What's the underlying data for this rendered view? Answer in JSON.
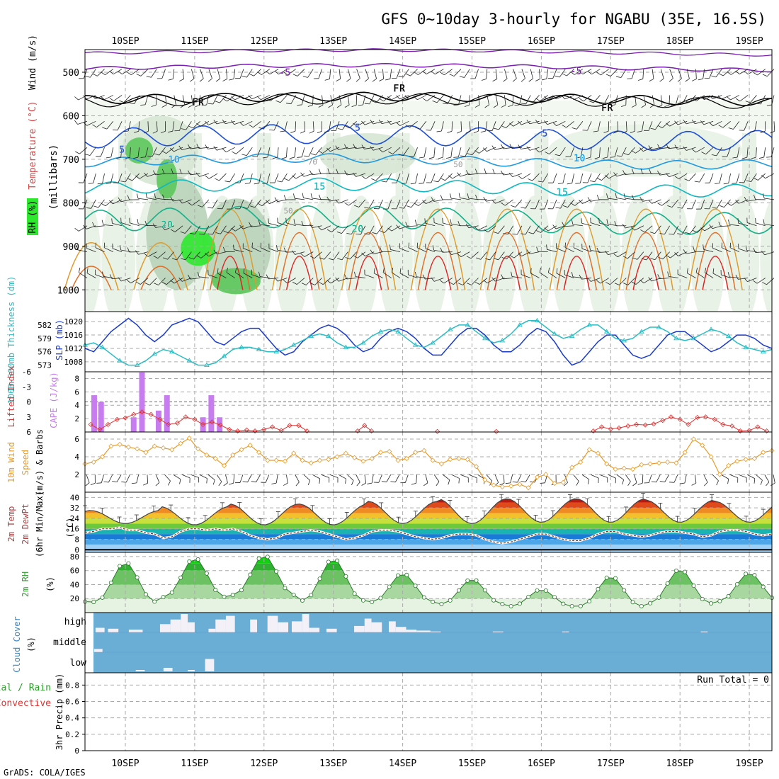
{
  "header": {
    "title": "GFS 0~10day 3-hourly for NGABU (35E, 16.5S)",
    "footer": "GrADS: COLA/IGES"
  },
  "dates": [
    "10SEP",
    "11SEP",
    "12SEP",
    "13SEP",
    "14SEP",
    "15SEP",
    "16SEP",
    "17SEP",
    "18SEP",
    "19SEP"
  ],
  "colors": {
    "grid": "#aaaaaa",
    "frame": "#000000",
    "thickness": "#2bbcc4",
    "slp": "#1a3acc",
    "cape": "#c77cf0",
    "lifted": "#dd3333",
    "wind10": "#e89b2a",
    "temp": "#444444",
    "rh": "#2e9e2e",
    "cloud": "#6aaed6",
    "cloud_gap": "#f4f0f8",
    "barb": "#222222",
    "t5": "#7a1fb0",
    "tfr": "#000000",
    "t_pos5": "#1f4fd8",
    "t10": "#1f9ae0",
    "t15": "#10b8c0",
    "t20": "#14b08a",
    "t25": "#e09a2a",
    "t30": "#e06d2a",
    "t35": "#dd2222",
    "rh_fill": "#2a9a2a"
  },
  "chart_data": [
    {
      "id": "profile",
      "type": "heatmap",
      "ylabel_parts": [
        "Wind (m/s)",
        "Temperature (°C)",
        "RH (%)",
        "(millibars)"
      ],
      "ylabel_wind": "Wind (m/s)",
      "ylabel_temp": "Temperature (°C)",
      "ylabel_rh": "RH (%)",
      "ylabel_mb": "(millibars)",
      "yticks": [
        "500",
        "600",
        "700",
        "800",
        "900",
        "1000"
      ],
      "ylim": [
        450,
        1000
      ],
      "isotherm_labels": [
        {
          "text": "-5",
          "day": 2.3,
          "p": 500,
          "kind": "t5"
        },
        {
          "text": "-5",
          "day": 6.5,
          "p": 497,
          "kind": "t5"
        },
        {
          "text": "FR",
          "day": 1.05,
          "p": 568,
          "kind": "tfr"
        },
        {
          "text": "FR",
          "day": 3.95,
          "p": 537,
          "kind": "tfr"
        },
        {
          "text": "FR",
          "day": 6.95,
          "p": 581,
          "kind": "tfr"
        },
        {
          "text": "5",
          "day": -0.05,
          "p": 677,
          "kind": "t_pos5"
        },
        {
          "text": "5",
          "day": 3.35,
          "p": 627,
          "kind": "t_pos5"
        },
        {
          "text": "5",
          "day": 6.05,
          "p": 640,
          "kind": "t_pos5"
        },
        {
          "text": "10",
          "day": 0.7,
          "p": 700,
          "kind": "t10"
        },
        {
          "text": "10",
          "day": 6.55,
          "p": 697,
          "kind": "t10"
        },
        {
          "text": "15",
          "day": 2.8,
          "p": 762,
          "kind": "t15"
        },
        {
          "text": "15",
          "day": 6.3,
          "p": 775,
          "kind": "t15"
        },
        {
          "text": "20",
          "day": 0.6,
          "p": 850,
          "kind": "t20"
        },
        {
          "text": "20",
          "day": 3.35,
          "p": 860,
          "kind": "t20"
        }
      ],
      "rh_labels": [
        {
          "text": "50",
          "day": 2.35,
          "p": 825
        },
        {
          "text": "70",
          "day": 2.7,
          "p": 712
        },
        {
          "text": "50",
          "day": 4.8,
          "p": 718
        }
      ],
      "rh_blobs": [
        {
          "day": 1.05,
          "p": 905,
          "rd": 0.25,
          "rp": 40,
          "rh": 90
        },
        {
          "day": 0.6,
          "p": 745,
          "rd": 0.15,
          "rp": 45,
          "rh": 80
        },
        {
          "day": 0.2,
          "p": 680,
          "rd": 0.2,
          "rp": 30,
          "rh": 80
        },
        {
          "day": 1.6,
          "p": 980,
          "rd": 0.35,
          "rp": 30,
          "rh": 80
        },
        {
          "day": 0.75,
          "p": 870,
          "rd": 0.45,
          "rp": 130,
          "rh": 60
        },
        {
          "day": 1.6,
          "p": 900,
          "rd": 0.5,
          "rp": 110,
          "rh": 60
        },
        {
          "day": 0.5,
          "p": 680,
          "rd": 0.55,
          "rp": 80,
          "rh": 40
        },
        {
          "day": 3.5,
          "p": 690,
          "rd": 0.7,
          "rp": 50,
          "rh": 40
        },
        {
          "day": 7.5,
          "p": 680,
          "rd": 1.4,
          "rp": 60,
          "rh": 30
        }
      ]
    },
    {
      "id": "slp_thick",
      "type": "line",
      "ylabel_thick": "1000-500mb Thickness (dm)",
      "ylabel_slp": "SLP (mb)",
      "yticks_left": [
        "582",
        "579",
        "576",
        "573"
      ],
      "yticks_right": [
        "1020",
        "1016",
        "1012",
        "1008"
      ],
      "ylim_left": [
        571.5,
        585
      ],
      "ylim_right": [
        1005,
        1023
      ],
      "series": [
        {
          "name": "SLP",
          "axis": "right",
          "values": [
            1012,
            1011,
            1014,
            1017,
            1019,
            1021,
            1019,
            1016,
            1014,
            1016,
            1019,
            1020,
            1021,
            1020,
            1017,
            1014,
            1013,
            1015,
            1017,
            1018,
            1018,
            1015,
            1012,
            1010,
            1011,
            1014,
            1016,
            1018,
            1019,
            1018,
            1016,
            1013,
            1011,
            1012,
            1015,
            1017,
            1018,
            1017,
            1015,
            1012,
            1010,
            1010,
            1013,
            1016,
            1018,
            1018,
            1016,
            1013,
            1011,
            1011,
            1013,
            1016,
            1018,
            1017,
            1014,
            1010,
            1007,
            1008,
            1011,
            1014,
            1016,
            1016,
            1013,
            1010,
            1009,
            1010,
            1013,
            1016,
            1017,
            1017,
            1015,
            1013,
            1011,
            1012,
            1014,
            1016,
            1016,
            1015,
            1013,
            1012
          ]
        },
        {
          "name": "Thickness",
          "axis": "left",
          "values": [
            577.5,
            578,
            577,
            575.5,
            574,
            573,
            573,
            574,
            575.5,
            576.5,
            576,
            575,
            574,
            573,
            573,
            573.5,
            575,
            576.5,
            577,
            577,
            576.5,
            576,
            576,
            576.5,
            577.5,
            578.5,
            579.5,
            580,
            579.5,
            578,
            577,
            577,
            578,
            579.5,
            580.5,
            581,
            580.5,
            579,
            577.5,
            577,
            578,
            579.5,
            581,
            582,
            582,
            580.5,
            579,
            578,
            578.5,
            580,
            582,
            583,
            583,
            581.5,
            580,
            579,
            579.5,
            581,
            582,
            582,
            580.5,
            579,
            578.5,
            579,
            580.5,
            581.5,
            581.5,
            580.5,
            579,
            578.5,
            579,
            580,
            581,
            580.5,
            579.5,
            578,
            577,
            576.5,
            576,
            576.5
          ]
        }
      ]
    },
    {
      "id": "cape_li",
      "type": "bar",
      "ylabel_li": "Lifted Index",
      "ylabel_cape": "CAPE (J/kg)",
      "yticks_left": [
        "-6",
        "-3",
        "0",
        "3",
        "6"
      ],
      "yticks_right": [
        "8",
        "6",
        "4",
        "2"
      ],
      "ylim_left": [
        6,
        -6
      ],
      "ylim_cape": [
        0,
        9
      ],
      "cape_bars": [
        {
          "day": -0.45,
          "value": 5.5
        },
        {
          "day": -0.35,
          "value": 4.5
        },
        {
          "day": 0.12,
          "value": 2.2
        },
        {
          "day": 0.24,
          "value": 8.9
        },
        {
          "day": 0.48,
          "value": 3.2
        },
        {
          "day": 0.6,
          "value": 5.5
        },
        {
          "day": 1.12,
          "value": 2.2
        },
        {
          "day": 1.24,
          "value": 5.5
        },
        {
          "day": 1.36,
          "value": 2.2
        }
      ],
      "li_points": [
        {
          "day": -0.5,
          "value": 4.5
        },
        {
          "day": -0.37,
          "value": 5.5
        },
        {
          "day": -0.25,
          "value": 4.5
        },
        {
          "day": -0.12,
          "value": 3.5
        },
        {
          "day": 0.0,
          "value": 3.2
        },
        {
          "day": 0.12,
          "value": 2.5
        },
        {
          "day": 0.24,
          "value": 2.0
        },
        {
          "day": 0.37,
          "value": 2.5
        },
        {
          "day": 0.5,
          "value": 3.5
        },
        {
          "day": 0.62,
          "value": 4.5
        },
        {
          "day": 0.75,
          "value": 4.2
        },
        {
          "day": 0.87,
          "value": 3.0
        },
        {
          "day": 1.0,
          "value": 3.5
        },
        {
          "day": 1.12,
          "value": 4.5
        },
        {
          "day": 1.25,
          "value": 4.0
        },
        {
          "day": 1.37,
          "value": 4.6
        },
        {
          "day": 1.5,
          "value": 5.5
        },
        {
          "day": 1.62,
          "value": 5.8
        },
        {
          "day": 1.75,
          "value": 5.6
        },
        {
          "day": 1.87,
          "value": 5.8
        },
        {
          "day": 2.0,
          "value": 5.5
        },
        {
          "day": 2.12,
          "value": 5.0
        },
        {
          "day": 2.25,
          "value": 5.7
        },
        {
          "day": 2.37,
          "value": 4.7
        },
        {
          "day": 2.5,
          "value": 4.7
        },
        {
          "day": 2.62,
          "value": 5.8
        },
        {
          "day": 3.35,
          "value": 5.8
        },
        {
          "day": 3.45,
          "value": 4.7
        },
        {
          "day": 3.55,
          "value": 5.8
        },
        {
          "day": 4.5,
          "value": 5.9
        },
        {
          "day": 5.35,
          "value": 5.9
        },
        {
          "day": 6.75,
          "value": 5.8
        },
        {
          "day": 6.87,
          "value": 5.0
        },
        {
          "day": 7.0,
          "value": 5.4
        },
        {
          "day": 7.12,
          "value": 5.2
        },
        {
          "day": 7.25,
          "value": 4.8
        },
        {
          "day": 7.37,
          "value": 4.5
        },
        {
          "day": 7.5,
          "value": 4.6
        },
        {
          "day": 7.62,
          "value": 4.4
        },
        {
          "day": 7.75,
          "value": 3.7
        },
        {
          "day": 7.87,
          "value": 3.0
        },
        {
          "day": 8.0,
          "value": 3.5
        },
        {
          "day": 8.12,
          "value": 4.5
        },
        {
          "day": 8.25,
          "value": 3.1
        },
        {
          "day": 8.37,
          "value": 3.0
        },
        {
          "day": 8.5,
          "value": 3.5
        },
        {
          "day": 8.62,
          "value": 4.5
        },
        {
          "day": 8.75,
          "value": 4.8
        },
        {
          "day": 8.87,
          "value": 5.8
        },
        {
          "day": 9.0,
          "value": 5.7
        },
        {
          "day": 9.12,
          "value": 5.0
        },
        {
          "day": 9.25,
          "value": 5.8
        }
      ],
      "li_segments": [
        [
          0,
          25
        ],
        [
          26,
          28
        ],
        [
          29,
          29
        ],
        [
          30,
          30
        ],
        [
          31,
          51
        ]
      ],
      "zero_line": 0
    },
    {
      "id": "wind10",
      "type": "line",
      "ylabel_parts": [
        "10m Wind",
        "Speed",
        "(m/s) & Barbs"
      ],
      "ylabel_a": "10m Wind",
      "ylabel_b": "Speed",
      "ylabel_c": "(m/s) & Barbs",
      "yticks": [
        "6",
        "4",
        "2"
      ],
      "ylim": [
        0,
        6.8
      ],
      "values": [
        3.2,
        3.4,
        4.0,
        5.2,
        5.4,
        5.1,
        4.9,
        4.5,
        5.2,
        5.0,
        4.8,
        5.5,
        6.1,
        4.9,
        4.2,
        3.8,
        3.0,
        4.2,
        4.8,
        5.3,
        4.5,
        3.6,
        3.6,
        3.5,
        4.4,
        3.6,
        3.3,
        3.6,
        3.7,
        4.0,
        4.4,
        3.9,
        3.5,
        3.8,
        4.5,
        4.6,
        3.6,
        3.8,
        4.5,
        4.7,
        3.6,
        3.2,
        3.7,
        3.8,
        3.7,
        2.9,
        1.4,
        0.8,
        0.6,
        0.7,
        0.9,
        0.5,
        1.7,
        2.0,
        1.0,
        1.1,
        2.8,
        3.4,
        4.8,
        4.4,
        3.2,
        2.6,
        2.7,
        2.6,
        3.1,
        3.2,
        3.3,
        3.4,
        3.3,
        4.5,
        6.0,
        5.3,
        4.0,
        2.0,
        3.0,
        3.5,
        3.7,
        3.8,
        4.5,
        4.7
      ]
    },
    {
      "id": "temp2m",
      "type": "area",
      "ylabel_parts": [
        "2m Temp",
        "2m DewPt",
        "(6hr Min/Max) (°C)"
      ],
      "ylabel_a": "2m Temp",
      "ylabel_b": "2m DewPt",
      "ylabel_c": "(6hr Min/Max)",
      "ylabel_unit": "(°C)",
      "yticks": [
        "40",
        "32",
        "24",
        "16",
        "8",
        "0"
      ],
      "ylim": [
        -2,
        44
      ],
      "temp_max": [
        30,
        33,
        35,
        35,
        37,
        39,
        39,
        39,
        38,
        37
      ],
      "temp_min": [
        20,
        19,
        19,
        19,
        20,
        20,
        21,
        21,
        21,
        21
      ],
      "dewpt": [
        13,
        14,
        16,
        16,
        17,
        15,
        15,
        13,
        12,
        9,
        10,
        14,
        16,
        16,
        15,
        16,
        15,
        16,
        14,
        11,
        9,
        8,
        9,
        12,
        13,
        14,
        15,
        14,
        12,
        10,
        8,
        9,
        11,
        14,
        15,
        15,
        14,
        12,
        10,
        9,
        8,
        9,
        11,
        12,
        12,
        11,
        8,
        6,
        5,
        6,
        8,
        10,
        12,
        12,
        10,
        8,
        7,
        7,
        9,
        12,
        14,
        14,
        12,
        11,
        10,
        11,
        13,
        14,
        14,
        13,
        12,
        10,
        11,
        14,
        15,
        15,
        14,
        12,
        11,
        12
      ]
    },
    {
      "id": "rh2m",
      "type": "area",
      "ylabel_a": "2m RH",
      "ylabel_b": "(%)",
      "yticks": [
        "80",
        "60",
        "40",
        "20"
      ],
      "ylim": [
        0,
        86
      ],
      "rh_max": [
        72,
        78,
        82,
        77,
        56,
        48,
        33,
        52,
        62,
        57
      ],
      "rh_min": [
        15,
        22,
        25,
        17,
        15,
        12,
        9,
        9,
        13,
        16
      ]
    },
    {
      "id": "cloud",
      "type": "bar",
      "ylabel_a": "Cloud Cover",
      "ylabel_b": "(%)",
      "levels": [
        "high",
        "middle",
        "low"
      ],
      "high_gaps": [
        {
          "d0": -0.43,
          "d1": -0.3,
          "v": 0.25
        },
        {
          "d0": -0.25,
          "d1": -0.1,
          "v": 0.2
        },
        {
          "d0": 0.05,
          "d1": 0.25,
          "v": 0.15
        },
        {
          "d0": 0.5,
          "d1": 0.65,
          "v": 0.45
        },
        {
          "d0": 0.65,
          "d1": 0.8,
          "v": 0.7
        },
        {
          "d0": 0.8,
          "d1": 0.9,
          "v": 1.0
        },
        {
          "d0": 0.9,
          "d1": 1.0,
          "v": 0.55
        },
        {
          "d0": 1.2,
          "d1": 1.3,
          "v": 0.2
        },
        {
          "d0": 1.3,
          "d1": 1.45,
          "v": 0.7
        },
        {
          "d0": 1.45,
          "d1": 1.58,
          "v": 0.9
        },
        {
          "d0": 1.8,
          "d1": 1.9,
          "v": 0.7
        },
        {
          "d0": 2.05,
          "d1": 2.2,
          "v": 0.9
        },
        {
          "d0": 2.2,
          "d1": 2.35,
          "v": 0.55
        },
        {
          "d0": 2.4,
          "d1": 2.55,
          "v": 0.6
        },
        {
          "d0": 2.55,
          "d1": 2.65,
          "v": 1.0
        },
        {
          "d0": 2.65,
          "d1": 2.8,
          "v": 0.25
        },
        {
          "d0": 2.9,
          "d1": 3.05,
          "v": 0.2
        },
        {
          "d0": 3.3,
          "d1": 3.45,
          "v": 0.35
        },
        {
          "d0": 3.45,
          "d1": 3.55,
          "v": 0.75
        },
        {
          "d0": 3.55,
          "d1": 3.7,
          "v": 0.55
        },
        {
          "d0": 3.8,
          "d1": 3.9,
          "v": 0.6
        },
        {
          "d0": 3.9,
          "d1": 4.05,
          "v": 0.3
        },
        {
          "d0": 4.05,
          "d1": 4.2,
          "v": 0.15
        },
        {
          "d0": 4.2,
          "d1": 4.4,
          "v": 0.1
        },
        {
          "d0": 4.4,
          "d1": 4.55,
          "v": 0.05
        },
        {
          "d0": 5.3,
          "d1": 5.45,
          "v": 0.05
        },
        {
          "d0": 6.3,
          "d1": 6.4,
          "v": 0.05
        },
        {
          "d0": 8.3,
          "d1": 8.4,
          "v": 0.05
        }
      ],
      "middle_gaps": [
        {
          "d0": -0.45,
          "d1": -0.33,
          "v": 0.18
        }
      ],
      "low_gaps": [
        {
          "d0": 0.15,
          "d1": 0.28,
          "v": 0.08
        },
        {
          "d0": 0.55,
          "d1": 0.68,
          "v": 0.2
        },
        {
          "d0": 0.9,
          "d1": 1.0,
          "v": 0.08
        },
        {
          "d0": 1.15,
          "d1": 1.28,
          "v": 0.7
        }
      ]
    },
    {
      "id": "precip",
      "type": "bar",
      "ylabel_a": "Total / Rain",
      "ylabel_b": "Convective",
      "ylabel_c": "3hr Precip (mm)",
      "yticks": [
        "0.8",
        "0.6",
        "0.4",
        "0.2",
        "0"
      ],
      "ylim": [
        0,
        0.95
      ],
      "run_total": "Run Total = 0",
      "values": []
    }
  ]
}
